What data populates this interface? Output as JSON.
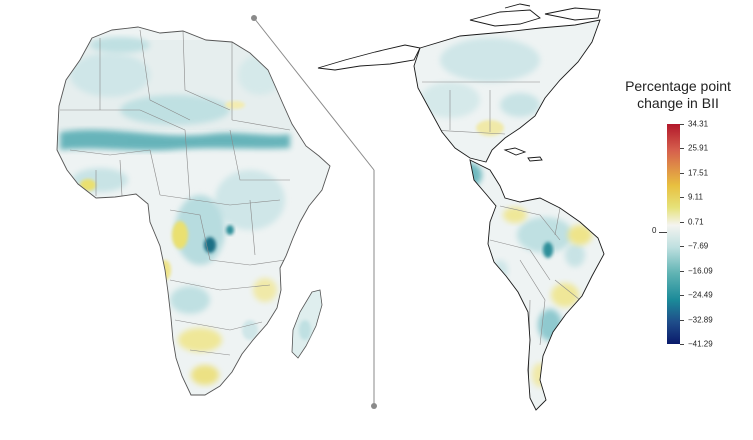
{
  "legend": {
    "title_line1": "Percentage point",
    "title_line2": "change in BII",
    "ticks": [
      "34.31",
      "25.91",
      "17.51",
      "9.11",
      "0.71",
      "−7.69",
      "−16.09",
      "−24.49",
      "−32.89",
      "−41.29"
    ],
    "zero_label": "0",
    "colors": [
      "#b2182b",
      "#d6604d",
      "#e8c040",
      "#e6e27a",
      "#f4f4f0",
      "#bfe0e0",
      "#5fb3b3",
      "#1b8a99",
      "#1f4d8a",
      "#0a1a6b"
    ]
  },
  "map_colors": {
    "land_base": "#eef3f3",
    "light_teal": "#cfe6e8",
    "teal": "#8fc9cf",
    "dark_teal": "#2f8f9a",
    "navy": "#1c3d7a",
    "yellow": "#eae070",
    "pale_yellow": "#f3ecb0",
    "border": "#8a8a8a",
    "coast": "#1a1a1a",
    "connector": "#8a8a8a"
  }
}
